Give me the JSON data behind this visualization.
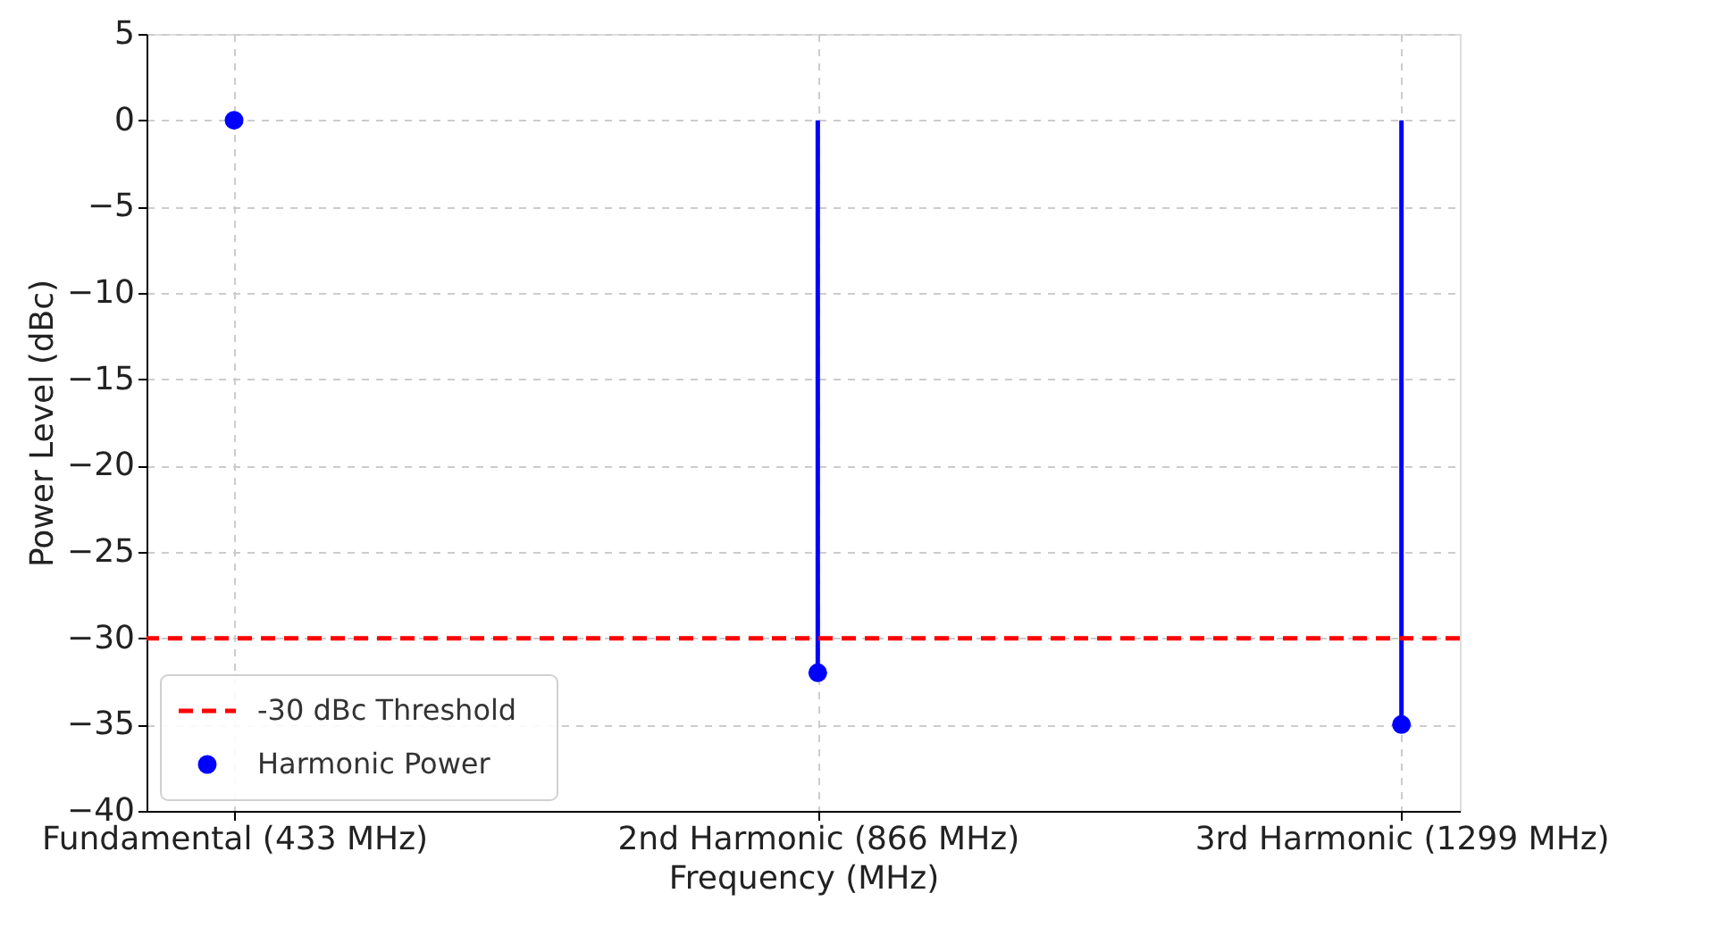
{
  "chart_data": {
    "type": "lollipop",
    "categories": [
      "Fundamental (433 MHz)",
      "2nd Harmonic (866 MHz)",
      "3rd Harmonic (1299 MHz)"
    ],
    "series": [
      {
        "name": "Harmonic Power",
        "color": "#0000ff",
        "values": [
          0,
          -32,
          -35
        ]
      }
    ],
    "xlabel": "Frequency (MHz)",
    "ylabel": "Power Level (dBc)",
    "ylim": [
      -40,
      5
    ],
    "yticks": [
      -40,
      -35,
      -30,
      -25,
      -20,
      -15,
      -10,
      -5,
      0,
      5
    ],
    "ref_lines": [
      {
        "axis": "y",
        "value": -30,
        "label": "-30 dBc Threshold",
        "color": "#ff0000",
        "line_style": "dashed"
      }
    ],
    "grid": true,
    "legend": "bottom left",
    "marker": "circle"
  }
}
